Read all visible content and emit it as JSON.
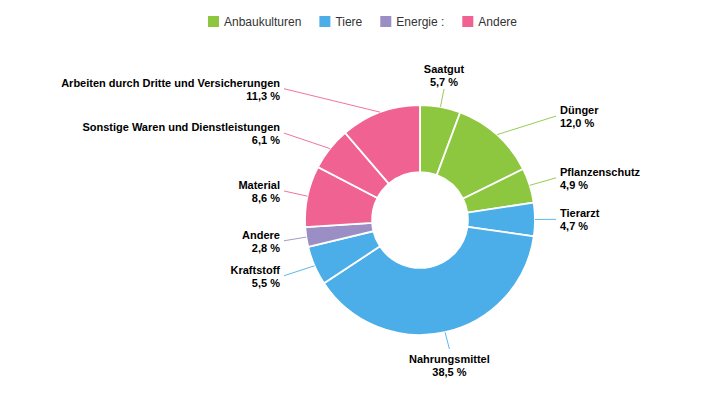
{
  "chart_data": {
    "type": "donut",
    "categories": [
      "Saatgut",
      "Dünger",
      "Pflanzenschutz",
      "Tierarzt",
      "Nahrungsmittel",
      "Kraftstoff",
      "Andere",
      "Material",
      "Sonstige Waren und Dienstleistungen",
      "Arbeiten durch Dritte und Versicherungen"
    ],
    "values": [
      5.7,
      12.0,
      4.9,
      4.7,
      38.5,
      5.5,
      2.8,
      8.6,
      6.1,
      11.3
    ],
    "value_labels": [
      "5,7 %",
      "12,0 %",
      "4,9 %",
      "4,7 %",
      "38,5 %",
      "5,5 %",
      "2,8 %",
      "8,6 %",
      "6,1 %",
      "11,3 %"
    ],
    "colors": [
      "#8DC63F",
      "#8DC63F",
      "#8DC63F",
      "#4BAEE8",
      "#4BAEE8",
      "#4BAEE8",
      "#9B8EC4",
      "#F06292",
      "#F06292",
      "#F06292"
    ],
    "groups": [
      {
        "name": "Anbaukulturen",
        "color": "#8DC63F"
      },
      {
        "name": "Tiere",
        "color": "#4BAEE8"
      },
      {
        "name": "Energie :",
        "color": "#9B8EC4"
      },
      {
        "name": "Andere",
        "color": "#F06292"
      }
    ],
    "legend": "top",
    "data_labels": true
  }
}
